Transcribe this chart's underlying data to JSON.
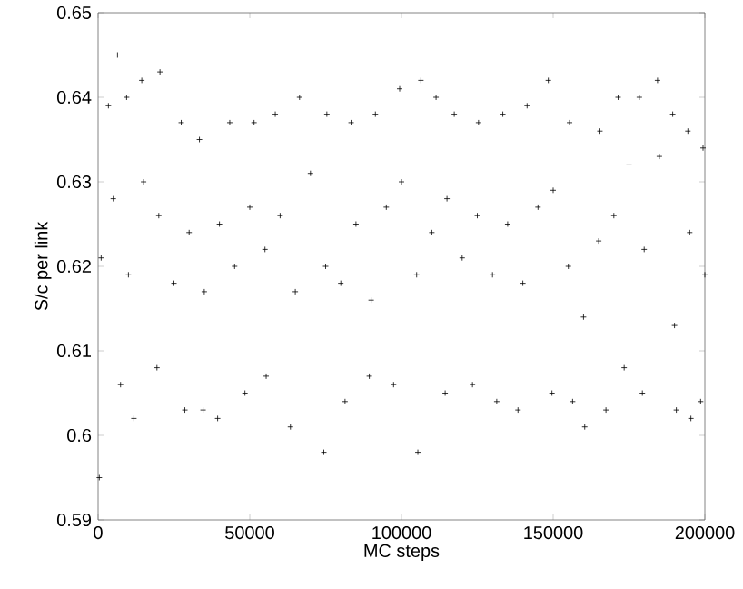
{
  "chart_data": {
    "type": "scatter",
    "xlabel": "MC steps",
    "ylabel": "S/c  per link",
    "xlim": [
      0,
      200000
    ],
    "ylim": [
      0.59,
      0.65
    ],
    "xticks": [
      0,
      50000,
      100000,
      150000,
      200000
    ],
    "yticks": [
      0.59,
      0.6,
      0.61,
      0.62,
      0.63,
      0.64,
      0.65
    ],
    "marker": "cross",
    "grid": false,
    "series": [
      {
        "color": "#000000",
        "x": [
          3400,
          6400,
          9400,
          14400,
          20400,
          27400,
          33400,
          43400,
          51400,
          58400,
          66400,
          75400,
          83400,
          91400,
          99400,
          106400,
          111400,
          117400,
          125400,
          133400,
          141400,
          148400,
          155400,
          165400,
          171400,
          178400,
          184400,
          189400,
          194400,
          199400,
          400,
          7400,
          11800,
          19400,
          28600,
          34600,
          39400,
          48400,
          55400,
          63400,
          74400,
          81400,
          89400,
          97400,
          105400,
          114400,
          123400,
          131400,
          138400,
          149600,
          156400,
          160400,
          167400,
          173400,
          179400,
          190600,
          195400,
          198600,
          1000,
          5000,
          10000,
          15000,
          20000,
          25000,
          30000,
          35000,
          40000,
          45000,
          50000,
          55000,
          60000,
          65000,
          70000,
          75000,
          80000,
          85000,
          90000,
          95000,
          100000,
          105000,
          110000,
          115000,
          120000,
          125000,
          130000,
          135000,
          140000,
          145000,
          150000,
          155000,
          160000,
          165000,
          170000,
          175000,
          180000,
          185000,
          190000,
          195000,
          200000
        ],
        "values": [
          0.639,
          0.645,
          0.64,
          0.642,
          0.643,
          0.637,
          0.635,
          0.637,
          0.637,
          0.638,
          0.64,
          0.638,
          0.637,
          0.638,
          0.641,
          0.642,
          0.64,
          0.638,
          0.637,
          0.638,
          0.639,
          0.642,
          0.637,
          0.636,
          0.64,
          0.64,
          0.642,
          0.638,
          0.636,
          0.634,
          0.595,
          0.606,
          0.602,
          0.608,
          0.603,
          0.603,
          0.602,
          0.605,
          0.607,
          0.601,
          0.598,
          0.604,
          0.607,
          0.606,
          0.598,
          0.605,
          0.606,
          0.604,
          0.603,
          0.605,
          0.604,
          0.601,
          0.603,
          0.608,
          0.605,
          0.603,
          0.602,
          0.604,
          0.621,
          0.628,
          0.619,
          0.63,
          0.626,
          0.618,
          0.624,
          0.617,
          0.625,
          0.62,
          0.627,
          0.622,
          0.626,
          0.617,
          0.631,
          0.62,
          0.618,
          0.625,
          0.616,
          0.627,
          0.63,
          0.619,
          0.624,
          0.628,
          0.621,
          0.626,
          0.619,
          0.625,
          0.618,
          0.627,
          0.629,
          0.62,
          0.614,
          0.623,
          0.626,
          0.632,
          0.622,
          0.633,
          0.613,
          0.624,
          0.619
        ]
      }
    ]
  }
}
